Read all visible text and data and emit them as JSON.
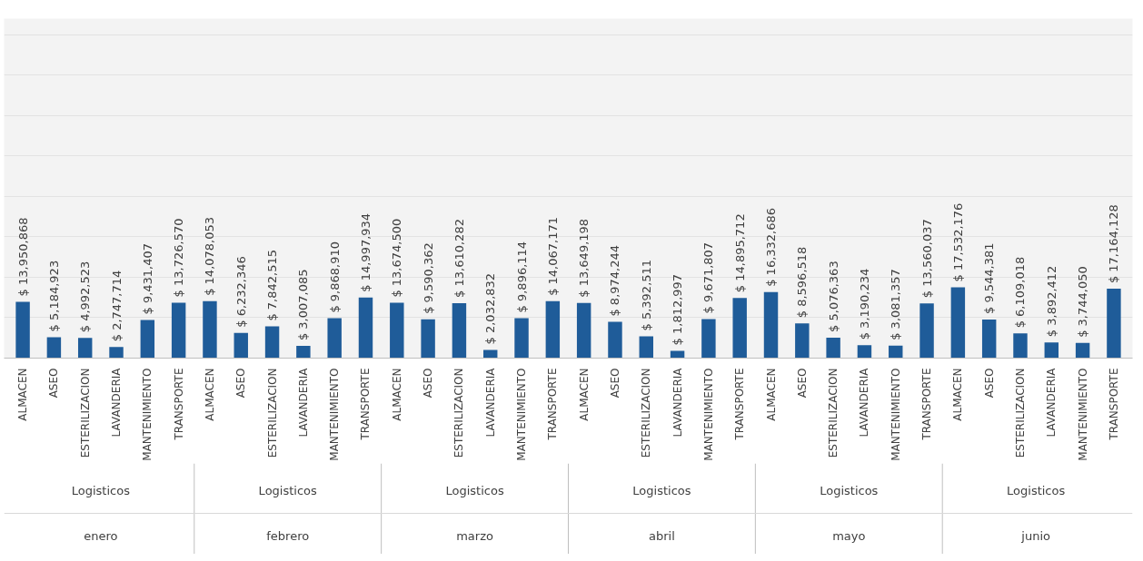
{
  "chart_data": {
    "type": "bar",
    "color": "#1f5c99",
    "categories": [
      "ALMACEN",
      "ASEO",
      "ESTERILIZACION",
      "LAVANDERIA",
      "MANTENIMIENTO",
      "TRANSPORTE",
      "ALMACEN",
      "ASEO",
      "ESTERILIZACION",
      "LAVANDERIA",
      "MANTENIMIENTO",
      "TRANSPORTE",
      "ALMACEN",
      "ASEO",
      "ESTERILIZACION",
      "LAVANDERIA",
      "MANTENIMIENTO",
      "TRANSPORTE",
      "ALMACEN",
      "ASEO",
      "ESTERILIZACION",
      "LAVANDERIA",
      "MANTENIMIENTO",
      "TRANSPORTE",
      "ALMACEN",
      "ASEO",
      "ESTERILIZACION",
      "LAVANDERIA",
      "MANTENIMIENTO",
      "TRANSPORTE",
      "ALMACEN",
      "ASEO",
      "ESTERILIZACION",
      "LAVANDERIA",
      "MANTENIMIENTO",
      "TRANSPORTE"
    ],
    "values": [
      13950868,
      5184923,
      4992523,
      2747714,
      9431407,
      13726570,
      14078053,
      6232346,
      7842515,
      3007085,
      9868910,
      14997934,
      13674500,
      9590362,
      13610282,
      2032832,
      9896114,
      14067171,
      13649198,
      8974244,
      5392511,
      1812997,
      9671807,
      14895712,
      16332686,
      8596518,
      5076363,
      3190234,
      3081357,
      13560037,
      17532176,
      9544381,
      6109018,
      3892412,
      3744050,
      17164128
    ],
    "value_labels": [
      "$ 13,950,868",
      "$ 5,184,923",
      "$ 4,992,523",
      "$ 2,747,714",
      "$ 9,431,407",
      "$ 13,726,570",
      "$ 14,078,053",
      "$ 6,232,346",
      "$ 7,842,515",
      "$ 3,007,085",
      "$ 9,868,910",
      "$ 14,997,934",
      "$ 13,674,500",
      "$ 9,590,362",
      "$ 13,610,282",
      "$ 2,032,832",
      "$ 9,896,114",
      "$ 14,067,171",
      "$ 13,649,198",
      "$ 8,974,244",
      "$ 5,392,511",
      "$ 1,812,997",
      "$ 9,671,807",
      "$ 14,895,712",
      "$ 16,332,686",
      "$ 8,596,518",
      "$ 5,076,363",
      "$ 3,190,234",
      "$ 3,081,357",
      "$ 13,560,037",
      "$ 17,532,176",
      "$ 9,544,381",
      "$ 6,109,018",
      "$ 3,892,412",
      "$ 3,744,050",
      "$ 17,164,128"
    ],
    "annotations": [
      "Logisticos",
      "enero",
      "Logisticos",
      "febrero",
      "Logisticos",
      "marzo",
      "Logisticos",
      "abril",
      "Logisticos",
      "mayo",
      "Logisticos",
      "junio"
    ],
    "ylim": [
      0,
      84000000
    ],
    "yticks": [
      {
        "value": 10000000,
        "label": null
      },
      {
        "value": 20000000,
        "label": null
      },
      {
        "value": 30000000,
        "label": null
      },
      {
        "value": 40000000,
        "label": null
      },
      {
        "value": 50000000,
        "label": null
      },
      {
        "value": 60000000,
        "label": null
      },
      {
        "value": 70000000,
        "label": null
      },
      {
        "value": 80000000,
        "label": null
      }
    ],
    "grid": "y",
    "tick_labels": "x"
  }
}
